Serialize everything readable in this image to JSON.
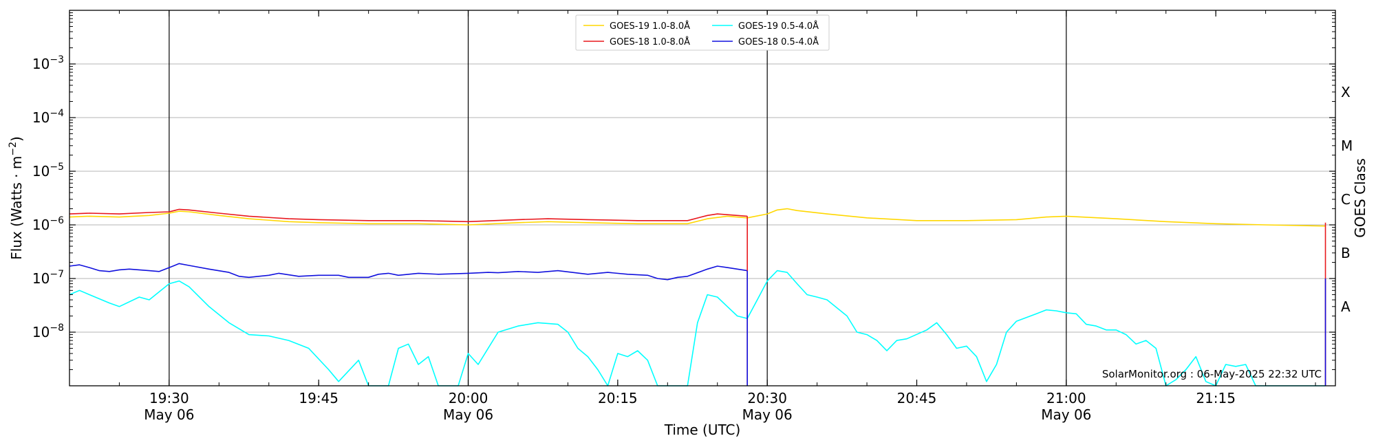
{
  "chart_data": {
    "type": "line",
    "xlabel": "Time (UTC)",
    "ylabel": "Flux (Watts · m",
    "ylabel_exp": "−2",
    "ylabel_close": ")",
    "right_ylabel": "GOES Class",
    "credit": "SolarMonitor.org : 06-May-2025 22:32 UTC",
    "y_scale": "log",
    "xlim": [
      "2025-05-06T19:20",
      "2025-05-06T21:27"
    ],
    "ylim": [
      1e-09,
      0.01
    ],
    "grid": "horizontal at decades",
    "legend_position": "top-center",
    "x_ticks": [
      {
        "t": "19:30",
        "date": "May 06"
      },
      {
        "t": "19:45",
        "date": ""
      },
      {
        "t": "20:00",
        "date": "May 06"
      },
      {
        "t": "20:15",
        "date": ""
      },
      {
        "t": "20:30",
        "date": "May 06"
      },
      {
        "t": "20:45",
        "date": ""
      },
      {
        "t": "21:00",
        "date": "May 06"
      },
      {
        "t": "21:15",
        "date": ""
      }
    ],
    "day_lines": [
      "19:30",
      "20:00",
      "20:30",
      "21:00"
    ],
    "y_ticks": [
      {
        "base": "10",
        "exp": "−3",
        "value": 0.001
      },
      {
        "base": "10",
        "exp": "−4",
        "value": 0.0001
      },
      {
        "base": "10",
        "exp": "−5",
        "value": 1e-05
      },
      {
        "base": "10",
        "exp": "−6",
        "value": 1e-06
      },
      {
        "base": "10",
        "exp": "−7",
        "value": 1e-07
      },
      {
        "base": "10",
        "exp": "−8",
        "value": 1e-08
      }
    ],
    "goes_classes": [
      {
        "label": "X",
        "value": 0.0003
      },
      {
        "label": "M",
        "value": 3e-05
      },
      {
        "label": "C",
        "value": 3e-06
      },
      {
        "label": "B",
        "value": 3e-07
      },
      {
        "label": "A",
        "value": 3e-08
      }
    ],
    "series": [
      {
        "name": "GOES-19 1.0-8.0Å",
        "color": "#FFD700",
        "points": [
          [
            "19:20",
            1.4e-06
          ],
          [
            "19:22",
            1.45e-06
          ],
          [
            "19:25",
            1.4e-06
          ],
          [
            "19:28",
            1.5e-06
          ],
          [
            "19:30",
            1.65e-06
          ],
          [
            "19:31",
            1.8e-06
          ],
          [
            "19:32",
            1.75e-06
          ],
          [
            "19:35",
            1.5e-06
          ],
          [
            "19:38",
            1.3e-06
          ],
          [
            "19:42",
            1.15e-06
          ],
          [
            "19:45",
            1.1e-06
          ],
          [
            "19:50",
            1.05e-06
          ],
          [
            "19:55",
            1.05e-06
          ],
          [
            "20:00",
            1e-06
          ],
          [
            "20:05",
            1.1e-06
          ],
          [
            "20:08",
            1.15e-06
          ],
          [
            "20:12",
            1.1e-06
          ],
          [
            "20:17",
            1.05e-06
          ],
          [
            "20:22",
            1.05e-06
          ],
          [
            "20:24",
            1.3e-06
          ],
          [
            "20:26",
            1.45e-06
          ],
          [
            "20:28",
            1.35e-06
          ],
          [
            "20:30",
            1.6e-06
          ],
          [
            "20:31",
            1.9e-06
          ],
          [
            "20:32",
            2e-06
          ],
          [
            "20:33",
            1.85e-06
          ],
          [
            "20:36",
            1.6e-06
          ],
          [
            "20:40",
            1.35e-06
          ],
          [
            "20:45",
            1.2e-06
          ],
          [
            "20:50",
            1.2e-06
          ],
          [
            "20:55",
            1.25e-06
          ],
          [
            "20:58",
            1.4e-06
          ],
          [
            "21:00",
            1.45e-06
          ],
          [
            "21:05",
            1.3e-06
          ],
          [
            "21:10",
            1.15e-06
          ],
          [
            "21:15",
            1.05e-06
          ],
          [
            "21:20",
            1e-06
          ],
          [
            "21:26",
            9.5e-07
          ]
        ]
      },
      {
        "name": "GOES-18 1.0-8.0Å",
        "color": "#E8171C",
        "points": [
          [
            "19:20",
            1.6e-06
          ],
          [
            "19:22",
            1.65e-06
          ],
          [
            "19:25",
            1.6e-06
          ],
          [
            "19:28",
            1.7e-06
          ],
          [
            "19:30",
            1.75e-06
          ],
          [
            "19:31",
            1.95e-06
          ],
          [
            "19:32",
            1.9e-06
          ],
          [
            "19:35",
            1.65e-06
          ],
          [
            "19:38",
            1.45e-06
          ],
          [
            "19:42",
            1.3e-06
          ],
          [
            "19:45",
            1.25e-06
          ],
          [
            "19:50",
            1.2e-06
          ],
          [
            "19:55",
            1.2e-06
          ],
          [
            "20:00",
            1.15e-06
          ],
          [
            "20:05",
            1.25e-06
          ],
          [
            "20:08",
            1.3e-06
          ],
          [
            "20:12",
            1.25e-06
          ],
          [
            "20:17",
            1.2e-06
          ],
          [
            "20:22",
            1.2e-06
          ],
          [
            "20:24",
            1.5e-06
          ],
          [
            "20:25",
            1.6e-06
          ],
          [
            "20:28",
            1.45e-06
          ]
        ]
      },
      {
        "name": "GOES-19 0.5-4.0Å",
        "color": "#00FFFF",
        "points": [
          [
            "19:20",
            5e-08
          ],
          [
            "19:21",
            6e-08
          ],
          [
            "19:22",
            5e-08
          ],
          [
            "19:24",
            3.5e-08
          ],
          [
            "19:25",
            3e-08
          ],
          [
            "19:27",
            4.5e-08
          ],
          [
            "19:28",
            4e-08
          ],
          [
            "19:30",
            8e-08
          ],
          [
            "19:31",
            9e-08
          ],
          [
            "19:32",
            7e-08
          ],
          [
            "19:34",
            3e-08
          ],
          [
            "19:36",
            1.5e-08
          ],
          [
            "19:38",
            9e-09
          ],
          [
            "19:40",
            8.5e-09
          ],
          [
            "19:42",
            7e-09
          ],
          [
            "19:44",
            5e-09
          ],
          [
            "19:46",
            2e-09
          ],
          [
            "19:47",
            1.2e-09
          ],
          [
            "19:49",
            3e-09
          ],
          [
            "19:50",
            1e-09
          ],
          [
            "19:52",
            1e-09
          ],
          [
            "19:53",
            5e-09
          ],
          [
            "19:54",
            6e-09
          ],
          [
            "19:55",
            2.5e-09
          ],
          [
            "19:56",
            3.5e-09
          ],
          [
            "19:57",
            1e-09
          ],
          [
            "19:59",
            1e-09
          ],
          [
            "20:00",
            4e-09
          ],
          [
            "20:01",
            2.5e-09
          ],
          [
            "20:03",
            1e-08
          ],
          [
            "20:05",
            1.3e-08
          ],
          [
            "20:07",
            1.5e-08
          ],
          [
            "20:09",
            1.4e-08
          ],
          [
            "20:10",
            1e-08
          ],
          [
            "20:11",
            5e-09
          ],
          [
            "20:12",
            3.5e-09
          ],
          [
            "20:13",
            2e-09
          ],
          [
            "20:14",
            1e-09
          ],
          [
            "20:15",
            4e-09
          ],
          [
            "20:16",
            3.5e-09
          ],
          [
            "20:17",
            4.5e-09
          ],
          [
            "20:18",
            3e-09
          ],
          [
            "20:19",
            1e-09
          ],
          [
            "20:22",
            1e-09
          ],
          [
            "20:23",
            1.5e-08
          ],
          [
            "20:24",
            5e-08
          ],
          [
            "20:25",
            4.5e-08
          ],
          [
            "20:26",
            3e-08
          ],
          [
            "20:27",
            2e-08
          ],
          [
            "20:28",
            1.8e-08
          ],
          [
            "20:29",
            4e-08
          ],
          [
            "20:30",
            9e-08
          ],
          [
            "20:31",
            1.4e-07
          ],
          [
            "20:32",
            1.3e-07
          ],
          [
            "20:33",
            8e-08
          ],
          [
            "20:34",
            5e-08
          ],
          [
            "20:35",
            4.5e-08
          ],
          [
            "20:36",
            4e-08
          ],
          [
            "20:38",
            2e-08
          ],
          [
            "20:39",
            1e-08
          ],
          [
            "20:40",
            9e-09
          ],
          [
            "20:41",
            7e-09
          ],
          [
            "20:42",
            4.5e-09
          ],
          [
            "20:43",
            7e-09
          ],
          [
            "20:44",
            7.5e-09
          ],
          [
            "20:46",
            1.1e-08
          ],
          [
            "20:47",
            1.5e-08
          ],
          [
            "20:48",
            9e-09
          ],
          [
            "20:49",
            5e-09
          ],
          [
            "20:50",
            5.5e-09
          ],
          [
            "20:51",
            3.5e-09
          ],
          [
            "20:52",
            1.2e-09
          ],
          [
            "20:53",
            2.5e-09
          ],
          [
            "20:54",
            1e-08
          ],
          [
            "20:55",
            1.6e-08
          ],
          [
            "20:57",
            2.2e-08
          ],
          [
            "20:58",
            2.6e-08
          ],
          [
            "20:59",
            2.5e-08
          ],
          [
            "21:00",
            2.3e-08
          ],
          [
            "21:01",
            2.2e-08
          ],
          [
            "21:02",
            1.4e-08
          ],
          [
            "21:03",
            1.3e-08
          ],
          [
            "21:04",
            1.1e-08
          ],
          [
            "21:05",
            1.1e-08
          ],
          [
            "21:06",
            9e-09
          ],
          [
            "21:07",
            6e-09
          ],
          [
            "21:08",
            7e-09
          ],
          [
            "21:09",
            5e-09
          ],
          [
            "21:10",
            1e-09
          ],
          [
            "21:11",
            1.3e-09
          ],
          [
            "21:12",
            2e-09
          ],
          [
            "21:13",
            3.5e-09
          ],
          [
            "21:14",
            1.2e-09
          ],
          [
            "21:15",
            1e-09
          ],
          [
            "21:16",
            2.5e-09
          ],
          [
            "21:17",
            2.3e-09
          ],
          [
            "21:18",
            2.5e-09
          ],
          [
            "21:19",
            1e-09
          ],
          [
            "21:26",
            1e-09
          ]
        ]
      },
      {
        "name": "GOES-18 0.5-4.0Å",
        "color": "#1010DD",
        "points": [
          [
            "19:20",
            1.7e-07
          ],
          [
            "19:21",
            1.8e-07
          ],
          [
            "19:22",
            1.6e-07
          ],
          [
            "19:23",
            1.4e-07
          ],
          [
            "19:24",
            1.35e-07
          ],
          [
            "19:25",
            1.45e-07
          ],
          [
            "19:26",
            1.5e-07
          ],
          [
            "19:28",
            1.4e-07
          ],
          [
            "19:29",
            1.35e-07
          ],
          [
            "19:30",
            1.6e-07
          ],
          [
            "19:31",
            1.9e-07
          ],
          [
            "19:32",
            1.75e-07
          ],
          [
            "19:34",
            1.5e-07
          ],
          [
            "19:36",
            1.3e-07
          ],
          [
            "19:37",
            1.1e-07
          ],
          [
            "19:38",
            1.05e-07
          ],
          [
            "19:40",
            1.15e-07
          ],
          [
            "19:41",
            1.25e-07
          ],
          [
            "19:43",
            1.1e-07
          ],
          [
            "19:45",
            1.15e-07
          ],
          [
            "19:47",
            1.15e-07
          ],
          [
            "19:48",
            1.05e-07
          ],
          [
            "19:50",
            1.05e-07
          ],
          [
            "19:51",
            1.2e-07
          ],
          [
            "19:52",
            1.25e-07
          ],
          [
            "19:53",
            1.15e-07
          ],
          [
            "19:55",
            1.25e-07
          ],
          [
            "19:57",
            1.2e-07
          ],
          [
            "20:00",
            1.25e-07
          ],
          [
            "20:02",
            1.3e-07
          ],
          [
            "20:03",
            1.28e-07
          ],
          [
            "20:05",
            1.35e-07
          ],
          [
            "20:07",
            1.3e-07
          ],
          [
            "20:09",
            1.4e-07
          ],
          [
            "20:12",
            1.2e-07
          ],
          [
            "20:14",
            1.3e-07
          ],
          [
            "20:16",
            1.2e-07
          ],
          [
            "20:18",
            1.15e-07
          ],
          [
            "20:19",
            1e-07
          ],
          [
            "20:20",
            9.5e-08
          ],
          [
            "20:21",
            1.05e-07
          ],
          [
            "20:22",
            1.1e-07
          ],
          [
            "20:24",
            1.5e-07
          ],
          [
            "20:25",
            1.7e-07
          ],
          [
            "20:26",
            1.6e-07
          ],
          [
            "20:28",
            1.4e-07
          ]
        ]
      }
    ],
    "series_ends": [
      {
        "color": "#E8171C",
        "time": "20:28",
        "from": 1.45e-06,
        "to": 1e-09
      },
      {
        "color": "#1010DD",
        "time": "20:28",
        "from": 1.4e-07,
        "to": 1e-09
      },
      {
        "color": "#E8171C",
        "time": "21:26",
        "from": 1.1e-06,
        "to": 1e-09
      },
      {
        "color": "#1010DD",
        "time": "21:26",
        "from": 1e-07,
        "to": 1e-09
      }
    ]
  }
}
